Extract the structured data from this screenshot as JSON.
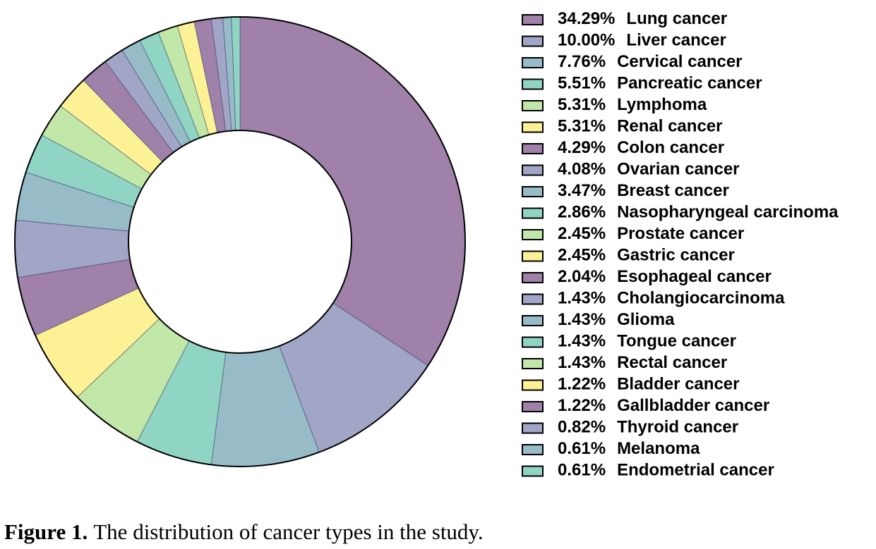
{
  "chart_data": {
    "type": "donut",
    "categories": [
      "Lung cancer",
      "Liver cancer",
      "Cervical cancer",
      "Pancreatic cancer",
      "Lymphoma",
      "Renal cancer",
      "Colon cancer",
      "Ovarian cancer",
      "Breast cancer",
      "Nasopharyngeal carcinoma",
      "Prostate cancer",
      "Gastric cancer",
      "Esophageal cancer",
      "Cholangiocarcinoma",
      "Glioma",
      "Tongue cancer",
      "Rectal cancer",
      "Bladder cancer",
      "Gallbladder cancer",
      "Thyroid cancer",
      "Melanoma",
      "Endometrial cancer"
    ],
    "values": [
      34.29,
      10.0,
      7.76,
      5.51,
      5.31,
      5.31,
      4.29,
      4.08,
      3.47,
      2.86,
      2.45,
      2.45,
      2.04,
      1.43,
      1.43,
      1.43,
      1.43,
      1.22,
      1.22,
      0.82,
      0.61,
      0.61
    ],
    "value_labels": [
      "34.29%",
      "10.00%",
      "7.76%",
      "5.51%",
      "5.31%",
      "5.31%",
      "4.29%",
      "4.08%",
      "3.47%",
      "2.86%",
      "2.45%",
      "2.45%",
      "2.04%",
      "1.43%",
      "1.43%",
      "1.43%",
      "1.43%",
      "1.22%",
      "1.22%",
      "0.82%",
      "0.61%",
      "0.61%"
    ],
    "colors": [
      "#a081aa",
      "#a1a5c6",
      "#97bcc8",
      "#90d5c3",
      "#c1e8a8",
      "#fcf195"
    ],
    "legend": "right"
  },
  "caption": {
    "label": "Figure 1.",
    "text": "The distribution of cancer types in the study."
  }
}
